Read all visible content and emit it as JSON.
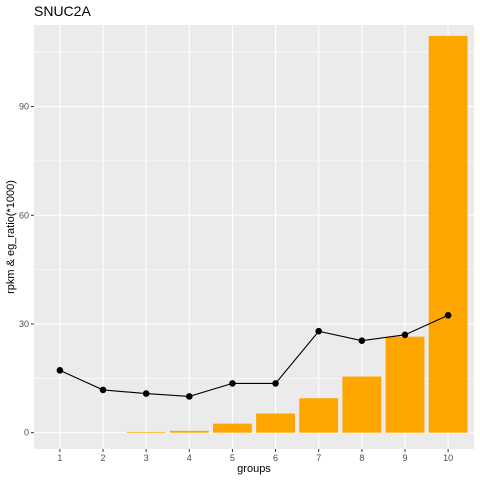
{
  "chart_data": {
    "type": "bar",
    "title": "SNUC2A",
    "xlabel": "groups",
    "ylabel": "rpkm & eg_ratio(*1000)",
    "categories": [
      "1",
      "2",
      "3",
      "4",
      "5",
      "6",
      "7",
      "8",
      "9",
      "10"
    ],
    "ylim": [
      -4.5,
      112.5
    ],
    "y_ticks": [
      0,
      30,
      60,
      90
    ],
    "grid": true,
    "series": [
      {
        "kind": "bar",
        "color": "#FFA500",
        "values": [
          0,
          0,
          0.2,
          0.5,
          2.5,
          5.3,
          9.5,
          15.5,
          26.5,
          109.5
        ]
      },
      {
        "kind": "line",
        "color": "#000000",
        "values": [
          17.2,
          11.8,
          10.8,
          10.0,
          13.6,
          13.6,
          28.0,
          25.4,
          27.0,
          32.4
        ]
      }
    ]
  }
}
